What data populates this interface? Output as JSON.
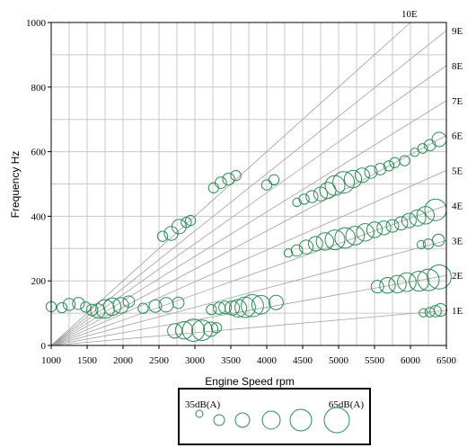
{
  "chart_data": {
    "type": "scatter",
    "title": "",
    "xlabel": "Engine Speed  rpm",
    "ylabel": "Frequency  Hz",
    "xlim": [
      1000,
      6500
    ],
    "ylim": [
      0,
      1000
    ],
    "xticks": [
      "1000",
      "1500",
      "2000",
      "2500",
      "3000",
      "3500",
      "4000",
      "4500",
      "5000",
      "5500",
      "6000",
      "6500"
    ],
    "yticks": [
      "0",
      "200",
      "400",
      "600",
      "800",
      "1000"
    ],
    "grid": true,
    "colors": {
      "marker": "#2e8b57",
      "order_line": "#a0a0a0",
      "grid": "#c8c8c8",
      "axis": "#000000"
    },
    "order_lines": [
      {
        "label": "1E",
        "order": 1
      },
      {
        "label": "2E",
        "order": 2
      },
      {
        "label": "3E",
        "order": 3
      },
      {
        "label": "4E",
        "order": 4
      },
      {
        "label": "5E",
        "order": 5
      },
      {
        "label": "6E",
        "order": 6
      },
      {
        "label": "7E",
        "order": 7
      },
      {
        "label": "8E",
        "order": 8
      },
      {
        "label": "9E",
        "order": 9
      },
      {
        "label": "10E",
        "order": 10
      }
    ],
    "size_legend": {
      "min_label": "35dB(A)",
      "max_label": "65dB(A)",
      "levels_dB": [
        35,
        41,
        47,
        53,
        59,
        65
      ]
    },
    "points": [
      {
        "x": 1000,
        "y": 120,
        "level": 40
      },
      {
        "x": 1150,
        "y": 117,
        "level": 40
      },
      {
        "x": 1250,
        "y": 127,
        "level": 43
      },
      {
        "x": 1380,
        "y": 130,
        "level": 43
      },
      {
        "x": 1480,
        "y": 119,
        "level": 40
      },
      {
        "x": 1570,
        "y": 110,
        "level": 42
      },
      {
        "x": 1650,
        "y": 107,
        "level": 47
      },
      {
        "x": 1750,
        "y": 113,
        "level": 54
      },
      {
        "x": 1850,
        "y": 120,
        "level": 52
      },
      {
        "x": 1970,
        "y": 124,
        "level": 49
      },
      {
        "x": 2080,
        "y": 136,
        "level": 42
      },
      {
        "x": 2280,
        "y": 115,
        "level": 40
      },
      {
        "x": 2450,
        "y": 122,
        "level": 44
      },
      {
        "x": 2600,
        "y": 126,
        "level": 47
      },
      {
        "x": 2770,
        "y": 132,
        "level": 42
      },
      {
        "x": 3230,
        "y": 111,
        "level": 40
      },
      {
        "x": 3340,
        "y": 115,
        "level": 43
      },
      {
        "x": 3420,
        "y": 118,
        "level": 44
      },
      {
        "x": 3520,
        "y": 116,
        "level": 47
      },
      {
        "x": 3600,
        "y": 115,
        "level": 52
      },
      {
        "x": 3700,
        "y": 118,
        "level": 57
      },
      {
        "x": 3800,
        "y": 123,
        "level": 60
      },
      {
        "x": 3920,
        "y": 126,
        "level": 54
      },
      {
        "x": 4130,
        "y": 133,
        "level": 47
      },
      {
        "x": 2720,
        "y": 45,
        "level": 47
      },
      {
        "x": 2850,
        "y": 47,
        "level": 52
      },
      {
        "x": 2980,
        "y": 47,
        "level": 60
      },
      {
        "x": 3100,
        "y": 47,
        "level": 57
      },
      {
        "x": 3220,
        "y": 50,
        "level": 47
      },
      {
        "x": 3300,
        "y": 55,
        "level": 40
      },
      {
        "x": 2550,
        "y": 338,
        "level": 40
      },
      {
        "x": 2670,
        "y": 347,
        "level": 46
      },
      {
        "x": 2780,
        "y": 368,
        "level": 47
      },
      {
        "x": 2880,
        "y": 381,
        "level": 40
      },
      {
        "x": 2940,
        "y": 387,
        "level": 40
      },
      {
        "x": 3260,
        "y": 488,
        "level": 40
      },
      {
        "x": 3360,
        "y": 504,
        "level": 42
      },
      {
        "x": 3470,
        "y": 515,
        "level": 43
      },
      {
        "x": 3570,
        "y": 526,
        "level": 40
      },
      {
        "x": 4000,
        "y": 497,
        "level": 40
      },
      {
        "x": 4100,
        "y": 513,
        "level": 40
      },
      {
        "x": 4420,
        "y": 443,
        "level": 37
      },
      {
        "x": 4520,
        "y": 453,
        "level": 40
      },
      {
        "x": 4630,
        "y": 461,
        "level": 43
      },
      {
        "x": 4750,
        "y": 469,
        "level": 46
      },
      {
        "x": 4850,
        "y": 480,
        "level": 50
      },
      {
        "x": 4950,
        "y": 495,
        "level": 56
      },
      {
        "x": 5070,
        "y": 505,
        "level": 59
      },
      {
        "x": 5200,
        "y": 515,
        "level": 52
      },
      {
        "x": 5330,
        "y": 527,
        "level": 47
      },
      {
        "x": 5450,
        "y": 537,
        "level": 44
      },
      {
        "x": 5580,
        "y": 546,
        "level": 42
      },
      {
        "x": 5700,
        "y": 556,
        "level": 40
      },
      {
        "x": 5780,
        "y": 566,
        "level": 40
      },
      {
        "x": 5920,
        "y": 572,
        "level": 40
      },
      {
        "x": 6060,
        "y": 598,
        "level": 37
      },
      {
        "x": 6170,
        "y": 610,
        "level": 39
      },
      {
        "x": 6270,
        "y": 620,
        "level": 42
      },
      {
        "x": 6400,
        "y": 638,
        "level": 47
      },
      {
        "x": 4300,
        "y": 286,
        "level": 37
      },
      {
        "x": 4420,
        "y": 294,
        "level": 42
      },
      {
        "x": 4550,
        "y": 305,
        "level": 46
      },
      {
        "x": 4680,
        "y": 315,
        "level": 47
      },
      {
        "x": 4810,
        "y": 322,
        "level": 52
      },
      {
        "x": 4950,
        "y": 327,
        "level": 56
      },
      {
        "x": 5090,
        "y": 333,
        "level": 57
      },
      {
        "x": 5230,
        "y": 340,
        "level": 54
      },
      {
        "x": 5370,
        "y": 350,
        "level": 52
      },
      {
        "x": 5500,
        "y": 358,
        "level": 49
      },
      {
        "x": 5630,
        "y": 364,
        "level": 46
      },
      {
        "x": 5750,
        "y": 370,
        "level": 44
      },
      {
        "x": 5870,
        "y": 378,
        "level": 45
      },
      {
        "x": 5980,
        "y": 387,
        "level": 47
      },
      {
        "x": 6100,
        "y": 395,
        "level": 50
      },
      {
        "x": 6210,
        "y": 403,
        "level": 52
      },
      {
        "x": 6350,
        "y": 420,
        "level": 59
      },
      {
        "x": 6150,
        "y": 312,
        "level": 37
      },
      {
        "x": 6250,
        "y": 314,
        "level": 40
      },
      {
        "x": 6390,
        "y": 326,
        "level": 43
      },
      {
        "x": 5540,
        "y": 182,
        "level": 44
      },
      {
        "x": 5680,
        "y": 186,
        "level": 49
      },
      {
        "x": 5820,
        "y": 190,
        "level": 52
      },
      {
        "x": 5950,
        "y": 196,
        "level": 54
      },
      {
        "x": 6120,
        "y": 199,
        "level": 56
      },
      {
        "x": 6250,
        "y": 203,
        "level": 59
      },
      {
        "x": 6400,
        "y": 212,
        "level": 63
      },
      {
        "x": 6180,
        "y": 101,
        "level": 37
      },
      {
        "x": 6270,
        "y": 103,
        "level": 39
      },
      {
        "x": 6350,
        "y": 106,
        "level": 42
      },
      {
        "x": 6420,
        "y": 110,
        "level": 44
      }
    ]
  }
}
